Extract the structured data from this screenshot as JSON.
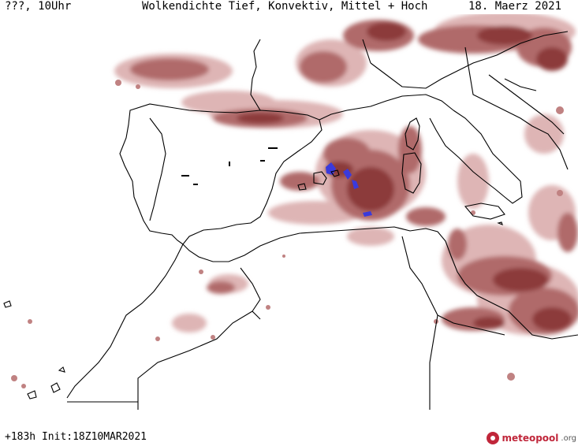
{
  "header": {
    "left": "???, 10Uhr",
    "title": "Wolkendichte  Tief, Konvektiv, Mittel + Hoch",
    "date": "18. Maerz 2021"
  },
  "footer": {
    "left": "+183h  Init:18Z10MAR2021"
  },
  "logo": {
    "name": "meteopool",
    "tld": ".org"
  },
  "colors": {
    "cloud_dense": "#8c3a3a",
    "cloud_mid": "#a85a5a",
    "cloud_light": "#cf9a9a",
    "precip": "#3a3adc",
    "coast": "#000000"
  }
}
